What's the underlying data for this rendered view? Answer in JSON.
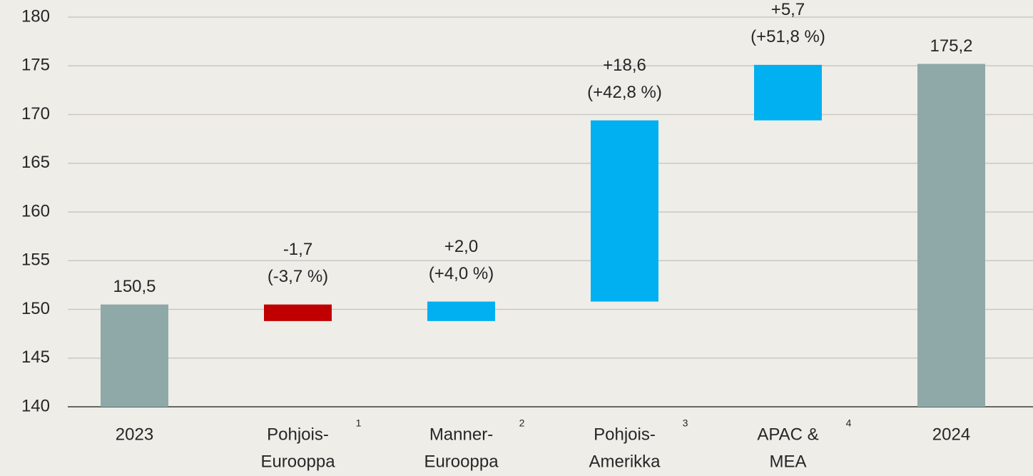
{
  "chart_data": {
    "type": "waterfall",
    "categories": [
      [
        "2023"
      ],
      [
        "Pohjois-",
        "Eurooppa"
      ],
      [
        "Manner-",
        "Eurooppa"
      ],
      [
        "Pohjois-",
        "Amerikka"
      ],
      [
        "APAC &",
        "MEA"
      ],
      [
        "2024"
      ]
    ],
    "footnotes": [
      null,
      "1",
      "2",
      "3",
      "4",
      null
    ],
    "kinds": [
      "total",
      "delta",
      "delta",
      "delta",
      "delta",
      "total"
    ],
    "values": [
      150.5,
      -1.7,
      2.0,
      18.6,
      5.7,
      175.2
    ],
    "value_labels": [
      "150,5",
      "-1,7",
      "+2,0",
      "+18,6",
      "+5,7",
      "175,2"
    ],
    "change_labels": [
      null,
      "(-3,7 %)",
      "(+4,0 %)",
      "(+42,8 %)",
      "(+51,8 %)",
      null
    ],
    "colors": {
      "total": "#8fa8a8",
      "increase": "#00b0f0",
      "decrease": "#c00000"
    },
    "ylim": [
      140,
      180
    ],
    "yticks": [
      140,
      145,
      150,
      155,
      160,
      165,
      170,
      175,
      180
    ],
    "grid": true
  }
}
